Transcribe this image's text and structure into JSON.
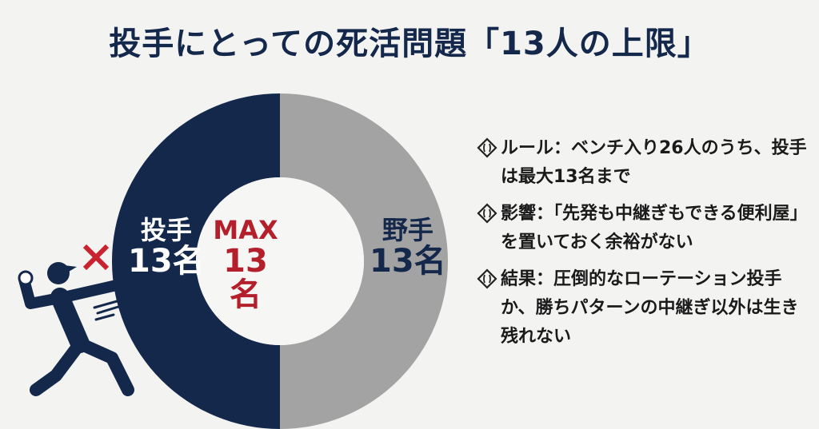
{
  "title": "投手にとっての死活問題「13人の上限」",
  "chart_data": {
    "type": "pie",
    "title": "投手にとっての死活問題「13人の上限」",
    "categories": [
      "投手",
      "野手"
    ],
    "values": [
      13,
      13
    ],
    "unit": "名",
    "colors": [
      "#14284b",
      "#a3a3a3"
    ],
    "center": {
      "label": "MAX",
      "value": "13名",
      "color": "#b3202c"
    },
    "labels": [
      {
        "name": "投手",
        "value": "13名"
      },
      {
        "name": "野手",
        "value": "13名"
      }
    ]
  },
  "bullets": [
    {
      "icon": "baseball-diamond-icon",
      "text": "ルール：ベンチ入り26人のうち、投手は最大13名まで"
    },
    {
      "icon": "baseball-diamond-icon",
      "text": "影響：「先発も中継ぎもできる便利屋」を置いておく余裕がない"
    },
    {
      "icon": "baseball-diamond-icon",
      "text": "結果：圧倒的なローテーション投手か、勝ちパターンの中継ぎ以外は生き残れない"
    }
  ]
}
